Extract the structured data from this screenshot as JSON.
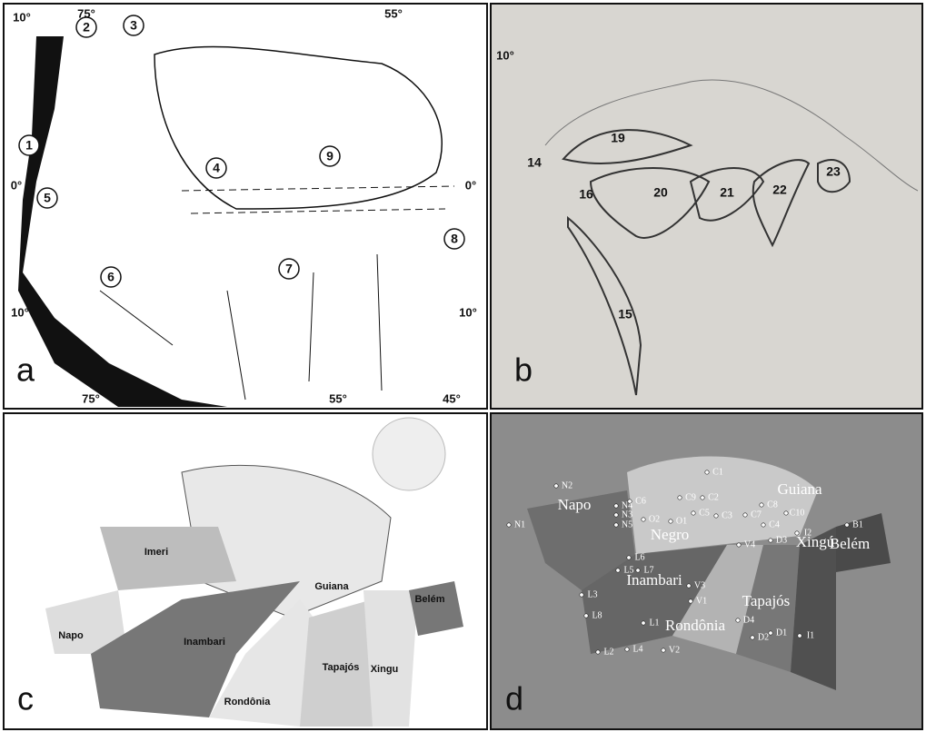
{
  "panels": [
    {
      "letter": "a",
      "coordinates": [
        "75°",
        "55°",
        "10°",
        "0°",
        "10°",
        "10°",
        "0°",
        "75°",
        "55°",
        "45°"
      ],
      "regions": [
        "1",
        "2",
        "3",
        "4",
        "5",
        "6",
        "7",
        "8",
        "9"
      ]
    },
    {
      "letter": "b",
      "coordinates": [
        "10°"
      ],
      "regions": [
        "14",
        "15",
        "16",
        "19",
        "20",
        "21",
        "22",
        "23"
      ]
    },
    {
      "letter": "c",
      "areas": [
        "Imeri",
        "Guiana",
        "Napo",
        "Inambari",
        "Belém",
        "Tapajós",
        "Xingu",
        "Rondônia"
      ]
    },
    {
      "letter": "d",
      "areas": [
        "Napo",
        "Guiana",
        "Negro",
        "Inambari",
        "Belém",
        "Xingú",
        "Tapajós",
        "Rondônia"
      ],
      "sites": [
        "N2",
        "N4",
        "N3",
        "N5",
        "N1",
        "C6",
        "O2",
        "O1",
        "C9",
        "C2",
        "C1",
        "C5",
        "C3",
        "C8",
        "C7",
        "C4",
        "C10",
        "V4",
        "D3",
        "I2",
        "B1",
        "L6",
        "L7",
        "L5",
        "L3",
        "L8",
        "V3",
        "L1",
        "V1",
        "L4",
        "L2",
        "V2",
        "D4",
        "D2",
        "D1",
        "I1"
      ]
    }
  ]
}
